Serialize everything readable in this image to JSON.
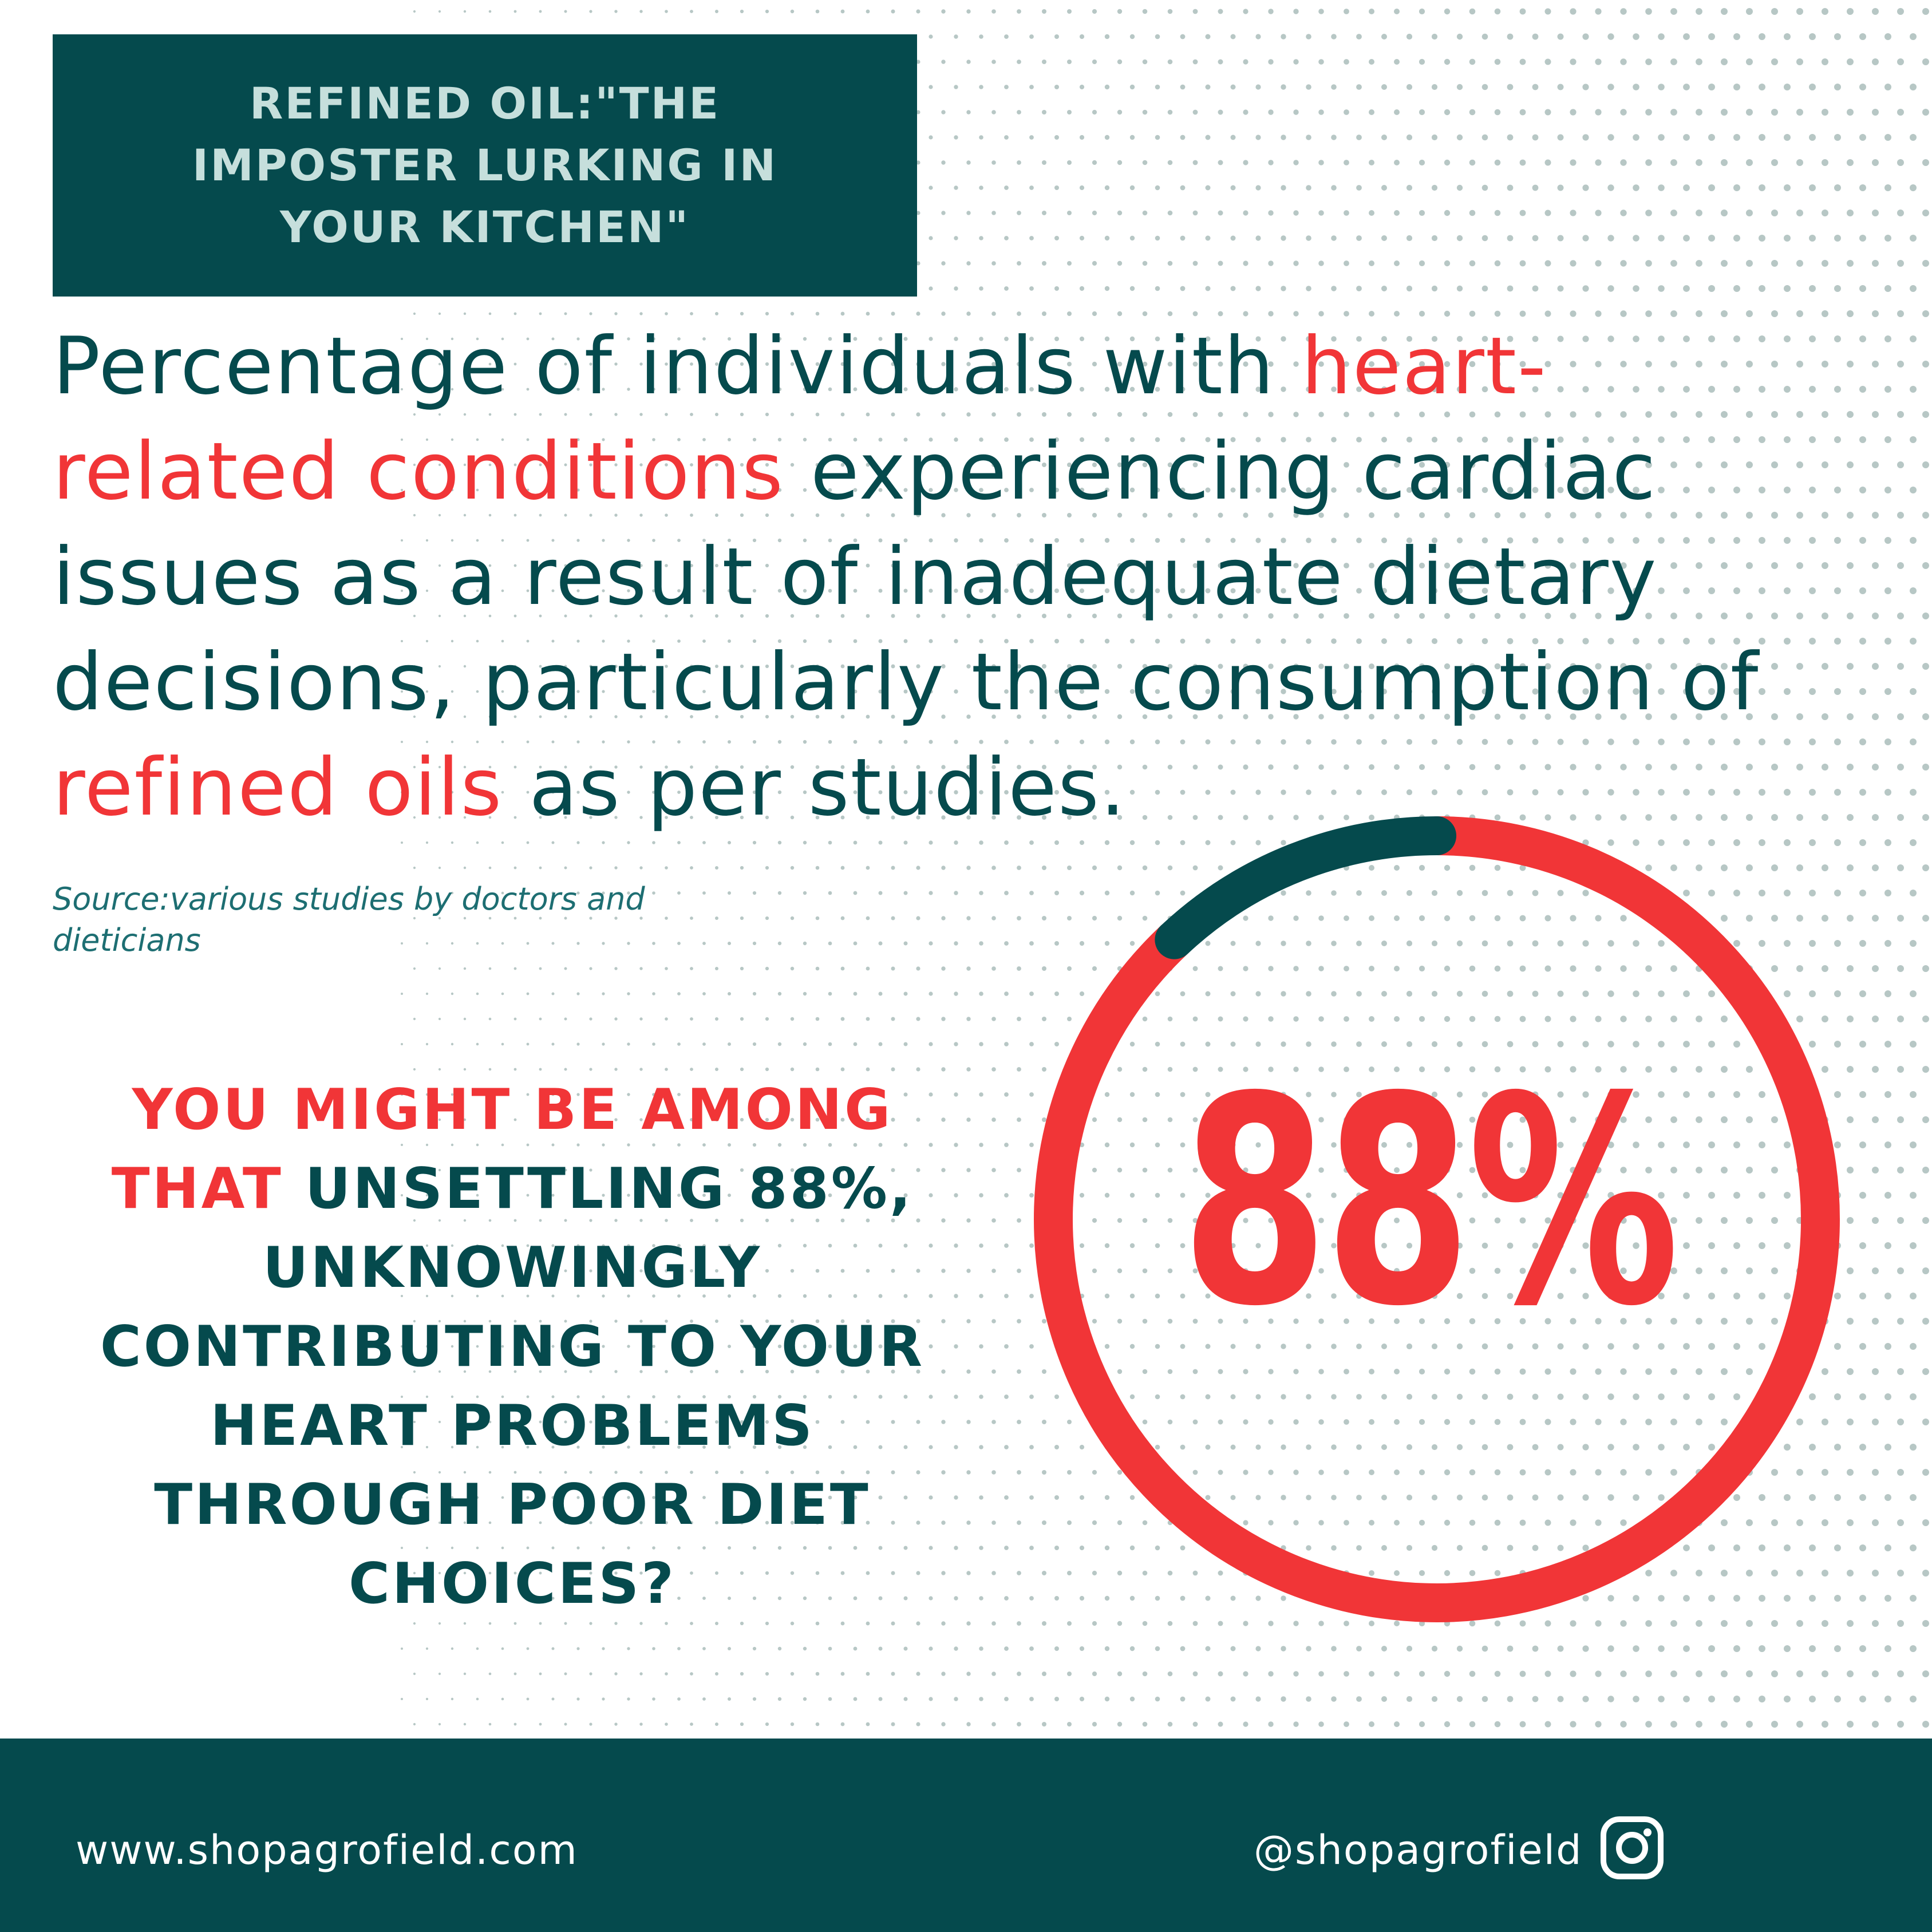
{
  "header": {
    "line1": "REFINED OIL:\"THE",
    "line2": "IMPOSTER LURKING IN",
    "line3": "YOUR KITCHEN\""
  },
  "lead": {
    "part1": "Percentage of  individuals with ",
    "highlight1": "heart-related conditions",
    "part2": " experiencing cardiac issues as a result of inadequate dietary decisions, particularly the consumption of ",
    "highlight2": "refined oils",
    "part3": " as per studies."
  },
  "source": "Source:various studies by doctors and dieticians",
  "question": {
    "highlight": "YOU MIGHT BE AMONG THAT",
    "rest": " UNSETTLING 88%, UNKNOWINGLY CONTRIBUTING TO YOUR HEART PROBLEMS THROUGH POOR DIET CHOICES?"
  },
  "chart_data": {
    "type": "pie",
    "subtype": "donut",
    "center_label": "88%",
    "slices": [
      {
        "value": 88,
        "color": "#f13537"
      },
      {
        "value": 12,
        "color": "#054a4d"
      }
    ]
  },
  "footer": {
    "website": "www.shopagrofield.com",
    "handle": "@shopagrofield",
    "icon": "instagram-icon"
  },
  "colors": {
    "teal": "#054a4d",
    "red": "#f13537",
    "header_text": "#c6dfdc",
    "dots": "#9fb4b2"
  }
}
